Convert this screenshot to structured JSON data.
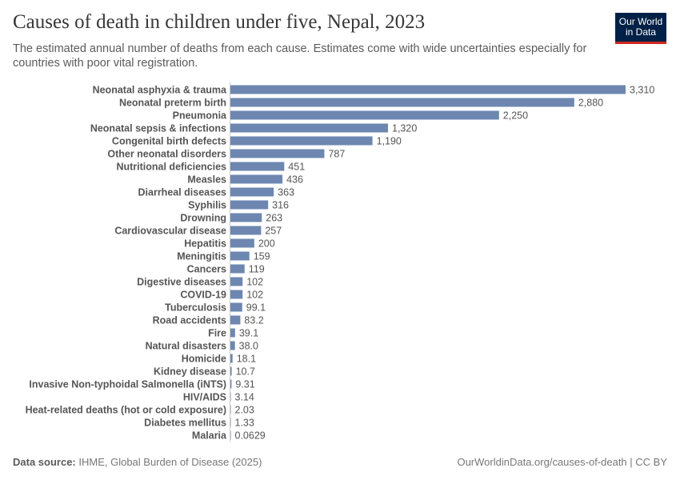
{
  "header": {
    "title": "Causes of death in children under five, Nepal, 2023",
    "subtitle": "The estimated annual number of deaths from each cause. Estimates come with wide uncertainties especially for countries with poor vital registration.",
    "logo_text": "Our World in Data"
  },
  "footer": {
    "source_label": "Data source:",
    "source": "IHME, Global Burden of Disease (2025)",
    "url": "OurWorldinData.org/causes-of-death | CC BY"
  },
  "colors": {
    "bar": "#6d87b0",
    "axis": "#cccccc"
  },
  "chart_data": {
    "type": "bar",
    "orientation": "horizontal",
    "title": "Causes of death in children under five, Nepal, 2023",
    "categories": [
      "Neonatal asphyxia & trauma",
      "Neonatal preterm birth",
      "Pneumonia",
      "Neonatal sepsis & infections",
      "Congenital birth defects",
      "Other neonatal disorders",
      "Nutritional deficiencies",
      "Measles",
      "Diarrheal diseases",
      "Syphilis",
      "Drowning",
      "Cardiovascular disease",
      "Hepatitis",
      "Meningitis",
      "Cancers",
      "Digestive diseases",
      "COVID-19",
      "Tuberculosis",
      "Road accidents",
      "Fire",
      "Natural disasters",
      "Homicide",
      "Kidney disease",
      "Invasive Non-typhoidal Salmonella (iNTS)",
      "HIV/AIDS",
      "Heat-related deaths (hot or cold exposure)",
      "Diabetes mellitus",
      "Malaria"
    ],
    "values": [
      3310,
      2880,
      2250,
      1320,
      1190,
      787,
      451,
      436,
      363,
      316,
      263,
      257,
      200,
      159,
      119,
      102,
      102,
      99.1,
      83.2,
      39.1,
      38.0,
      18.1,
      10.7,
      9.31,
      3.14,
      2.03,
      1.33,
      0.0629
    ],
    "labels": [
      "3,310",
      "2,880",
      "2,250",
      "1,320",
      "1,190",
      "787",
      "451",
      "436",
      "363",
      "316",
      "263",
      "257",
      "200",
      "159",
      "119",
      "102",
      "102",
      "99.1",
      "83.2",
      "39.1",
      "38.0",
      "18.1",
      "10.7",
      "9.31",
      "3.14",
      "2.03",
      "1.33",
      "0.0629"
    ],
    "xlim": [
      0,
      3310
    ],
    "grid": false
  }
}
